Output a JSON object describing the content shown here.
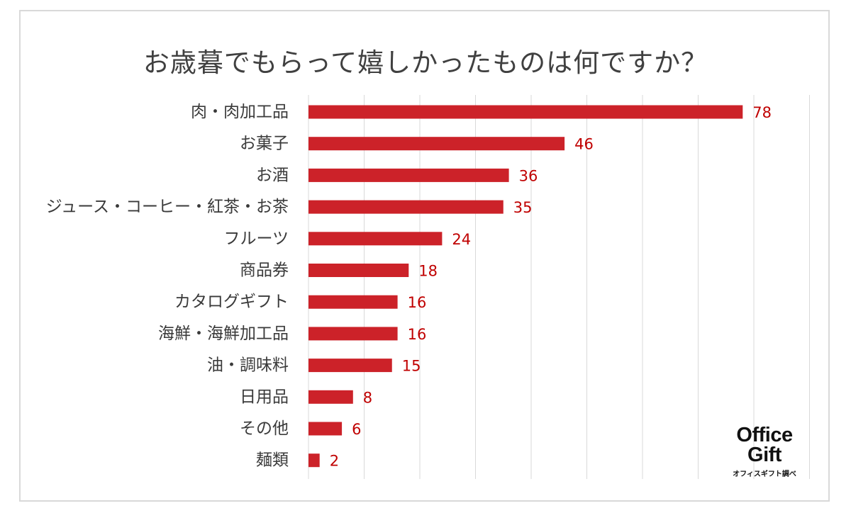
{
  "chart_data": {
    "type": "bar",
    "orientation": "horizontal",
    "title": "お歳暮でもらって嬉しかったものは何ですか？",
    "categories": [
      "肉・肉加工品",
      "お菓子",
      "お酒",
      "ジュース・コーヒー・紅茶・お茶",
      "フルーツ",
      "商品券",
      "カタログギフト",
      "海鮮・海鮮加工品",
      "油・調味料",
      "日用品",
      "その他",
      "麺類"
    ],
    "values": [
      78,
      46,
      36,
      35,
      24,
      18,
      16,
      16,
      15,
      8,
      6,
      2
    ],
    "xlim": [
      0,
      90
    ],
    "grid": true,
    "bar_color": "#cc2229",
    "value_label_color": "#c00000"
  },
  "logo": {
    "line1": "Office",
    "line2": "Gift",
    "sub": "オフィスギフト調べ"
  }
}
